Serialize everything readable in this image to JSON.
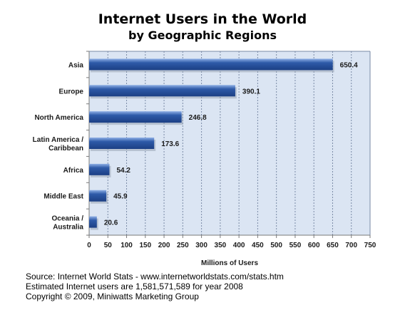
{
  "chart_data": {
    "type": "bar",
    "orientation": "horizontal",
    "title": "Internet Users in the World",
    "subtitle": "by Geographic Regions",
    "categories": [
      [
        "Asia"
      ],
      [
        "Europe"
      ],
      [
        "North America"
      ],
      [
        "Latin America /",
        "Caribbean"
      ],
      [
        "Africa"
      ],
      [
        "Middle East"
      ],
      [
        "Oceania  /",
        "Australia"
      ]
    ],
    "values": [
      650.4,
      390.1,
      246.8,
      173.6,
      54.2,
      45.9,
      20.6
    ],
    "value_labels": [
      "650.4",
      "390.1",
      "246.8",
      "173.6",
      "54.2",
      "45.9",
      "20.6"
    ],
    "xlabel": "Millions of Users",
    "ylabel": "",
    "xlim": [
      0,
      750
    ],
    "x_ticks": [
      0,
      50,
      100,
      150,
      200,
      250,
      300,
      350,
      400,
      450,
      500,
      550,
      600,
      650,
      700,
      750
    ],
    "grid": "vertical",
    "legend": "none",
    "colors": {
      "bar": "#2e5aa8",
      "bar_light": "#8fb0e6",
      "bar_dark": "#1c3f84",
      "plot_background": "#dbe5f3",
      "grid": "#7a8aa6",
      "axis": "#7a7a7a"
    }
  },
  "footer": {
    "source": "Source: Internet World Stats - www.internetworldstats.com/stats.htm",
    "estimate": "Estimated Internet users are 1,581,571,589 for year 2008",
    "copyright": "Copyright © 2009, Miniwatts Marketing Group"
  }
}
